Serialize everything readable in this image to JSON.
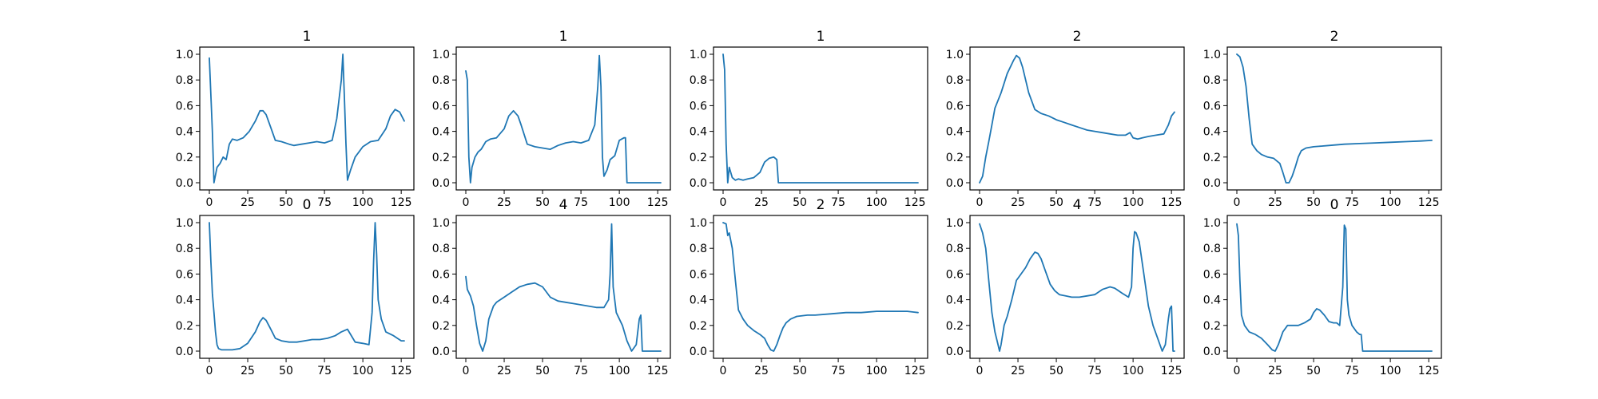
{
  "chart_data": [
    {
      "type": "line",
      "title": "1",
      "xlim": [
        0,
        127
      ],
      "ylim": [
        0,
        1
      ],
      "xticks": [
        "0",
        "25",
        "50",
        "75",
        "100",
        "125"
      ],
      "yticks": [
        "0.0",
        "0.2",
        "0.4",
        "0.6",
        "0.8",
        "1.0"
      ],
      "color": "#1f77b4",
      "x": [
        0,
        2,
        3,
        5,
        7,
        9,
        11,
        13,
        15,
        18,
        22,
        26,
        30,
        33,
        35,
        37,
        40,
        43,
        47,
        52,
        55,
        60,
        65,
        70,
        75,
        80,
        83,
        86,
        87,
        88,
        89,
        90,
        92,
        95,
        100,
        105,
        110,
        115,
        118,
        121,
        124,
        127
      ],
      "y": [
        0.97,
        0.4,
        0.0,
        0.12,
        0.15,
        0.2,
        0.18,
        0.3,
        0.34,
        0.33,
        0.35,
        0.4,
        0.48,
        0.56,
        0.56,
        0.53,
        0.43,
        0.33,
        0.32,
        0.3,
        0.29,
        0.3,
        0.31,
        0.32,
        0.31,
        0.33,
        0.5,
        0.8,
        1.0,
        0.65,
        0.3,
        0.02,
        0.1,
        0.2,
        0.28,
        0.32,
        0.33,
        0.42,
        0.52,
        0.57,
        0.55,
        0.48
      ]
    },
    {
      "type": "line",
      "title": "1",
      "xlim": [
        0,
        127
      ],
      "ylim": [
        0,
        1
      ],
      "xticks": [
        "0",
        "25",
        "50",
        "75",
        "100",
        "125"
      ],
      "yticks": [
        "0.0",
        "0.2",
        "0.4",
        "0.6",
        "0.8",
        "1.0"
      ],
      "color": "#1f77b4",
      "x": [
        0,
        1,
        2,
        3,
        4,
        6,
        8,
        10,
        13,
        16,
        20,
        25,
        28,
        31,
        34,
        36,
        40,
        45,
        50,
        55,
        60,
        65,
        70,
        75,
        80,
        84,
        86,
        87,
        88,
        89,
        90,
        92,
        94,
        97,
        100,
        103,
        104,
        105,
        106,
        110,
        120,
        127
      ],
      "y": [
        0.87,
        0.8,
        0.2,
        0.0,
        0.12,
        0.2,
        0.24,
        0.26,
        0.32,
        0.34,
        0.35,
        0.42,
        0.52,
        0.56,
        0.52,
        0.45,
        0.3,
        0.28,
        0.27,
        0.26,
        0.29,
        0.31,
        0.32,
        0.31,
        0.33,
        0.45,
        0.75,
        0.99,
        0.75,
        0.2,
        0.05,
        0.1,
        0.18,
        0.21,
        0.33,
        0.35,
        0.35,
        0.0,
        0.0,
        0.0,
        0.0,
        0.0
      ]
    },
    {
      "type": "line",
      "title": "1",
      "xlim": [
        0,
        127
      ],
      "ylim": [
        0,
        1
      ],
      "xticks": [
        "0",
        "25",
        "50",
        "75",
        "100",
        "125"
      ],
      "yticks": [
        "0.0",
        "0.2",
        "0.4",
        "0.6",
        "0.8",
        "1.0"
      ],
      "color": "#1f77b4",
      "x": [
        0,
        1,
        2,
        3,
        4,
        6,
        8,
        10,
        13,
        16,
        20,
        24,
        27,
        30,
        33,
        35,
        36,
        37,
        50,
        75,
        100,
        127
      ],
      "y": [
        1.0,
        0.88,
        0.3,
        0.0,
        0.12,
        0.04,
        0.02,
        0.03,
        0.02,
        0.03,
        0.04,
        0.08,
        0.16,
        0.19,
        0.2,
        0.18,
        0.0,
        0.0,
        0.0,
        0.0,
        0.0,
        0.0
      ]
    },
    {
      "type": "line",
      "title": "2",
      "xlim": [
        0,
        127
      ],
      "ylim": [
        0,
        1
      ],
      "xticks": [
        "0",
        "25",
        "50",
        "75",
        "100",
        "125"
      ],
      "yticks": [
        "0.0",
        "0.2",
        "0.4",
        "0.6",
        "0.8",
        "1.0"
      ],
      "color": "#1f77b4",
      "x": [
        0,
        2,
        4,
        6,
        8,
        10,
        14,
        18,
        22,
        24,
        26,
        28,
        32,
        36,
        40,
        45,
        50,
        55,
        60,
        65,
        70,
        75,
        80,
        85,
        90,
        95,
        98,
        100,
        103,
        106,
        110,
        115,
        120,
        123,
        125,
        127
      ],
      "y": [
        0.0,
        0.05,
        0.2,
        0.32,
        0.45,
        0.58,
        0.7,
        0.85,
        0.95,
        0.99,
        0.97,
        0.9,
        0.7,
        0.57,
        0.54,
        0.52,
        0.49,
        0.47,
        0.45,
        0.43,
        0.41,
        0.4,
        0.39,
        0.38,
        0.37,
        0.37,
        0.39,
        0.35,
        0.34,
        0.35,
        0.36,
        0.37,
        0.38,
        0.45,
        0.52,
        0.55
      ]
    },
    {
      "type": "line",
      "title": "2",
      "xlim": [
        0,
        127
      ],
      "ylim": [
        0,
        1
      ],
      "xticks": [
        "0",
        "25",
        "50",
        "75",
        "100",
        "125"
      ],
      "yticks": [
        "0.0",
        "0.2",
        "0.4",
        "0.6",
        "0.8",
        "1.0"
      ],
      "color": "#1f77b4",
      "x": [
        0,
        2,
        4,
        6,
        8,
        10,
        13,
        16,
        20,
        24,
        28,
        30,
        32,
        34,
        36,
        38,
        40,
        42,
        45,
        50,
        55,
        60,
        70,
        80,
        90,
        100,
        110,
        120,
        127
      ],
      "y": [
        1.0,
        0.98,
        0.9,
        0.75,
        0.5,
        0.3,
        0.25,
        0.22,
        0.2,
        0.19,
        0.15,
        0.08,
        0.0,
        0.0,
        0.05,
        0.12,
        0.2,
        0.25,
        0.27,
        0.28,
        0.285,
        0.29,
        0.3,
        0.305,
        0.31,
        0.315,
        0.32,
        0.325,
        0.33
      ]
    },
    {
      "type": "line",
      "title": "0",
      "xlim": [
        0,
        127
      ],
      "ylim": [
        0,
        1
      ],
      "xticks": [
        "0",
        "25",
        "50",
        "75",
        "100",
        "125"
      ],
      "yticks": [
        "0.0",
        "0.2",
        "0.4",
        "0.6",
        "0.8",
        "1.0"
      ],
      "color": "#1f77b4",
      "x": [
        0,
        1,
        2,
        3,
        4,
        5,
        6,
        8,
        10,
        15,
        20,
        25,
        30,
        33,
        35,
        37,
        40,
        43,
        47,
        52,
        57,
        62,
        67,
        72,
        77,
        82,
        86,
        90,
        92,
        95,
        100,
        104,
        106,
        107,
        108,
        109,
        110,
        112,
        115,
        120,
        125,
        127
      ],
      "y": [
        1.0,
        0.7,
        0.45,
        0.3,
        0.15,
        0.05,
        0.02,
        0.01,
        0.01,
        0.01,
        0.02,
        0.06,
        0.15,
        0.23,
        0.26,
        0.24,
        0.17,
        0.1,
        0.08,
        0.07,
        0.07,
        0.08,
        0.09,
        0.09,
        0.1,
        0.12,
        0.15,
        0.17,
        0.13,
        0.07,
        0.06,
        0.05,
        0.3,
        0.7,
        1.0,
        0.75,
        0.4,
        0.25,
        0.15,
        0.12,
        0.08,
        0.08
      ]
    },
    {
      "type": "line",
      "title": "4",
      "xlim": [
        0,
        127
      ],
      "ylim": [
        0,
        1
      ],
      "xticks": [
        "0",
        "25",
        "50",
        "75",
        "100",
        "125"
      ],
      "yticks": [
        "0.0",
        "0.2",
        "0.4",
        "0.6",
        "0.8",
        "1.0"
      ],
      "color": "#1f77b4",
      "x": [
        0,
        1,
        3,
        5,
        7,
        9,
        11,
        13,
        15,
        18,
        20,
        25,
        30,
        35,
        40,
        45,
        50,
        55,
        60,
        65,
        70,
        75,
        80,
        85,
        90,
        93,
        94,
        95,
        96,
        98,
        102,
        105,
        108,
        111,
        113,
        114,
        115,
        120,
        127
      ],
      "y": [
        0.58,
        0.48,
        0.43,
        0.35,
        0.2,
        0.06,
        0.0,
        0.08,
        0.25,
        0.35,
        0.38,
        0.42,
        0.46,
        0.5,
        0.52,
        0.53,
        0.5,
        0.42,
        0.39,
        0.38,
        0.37,
        0.36,
        0.35,
        0.34,
        0.34,
        0.4,
        0.6,
        0.99,
        0.5,
        0.3,
        0.2,
        0.08,
        0.0,
        0.05,
        0.25,
        0.28,
        0.0,
        0.0,
        0.0
      ]
    },
    {
      "type": "line",
      "title": "2",
      "xlim": [
        0,
        127
      ],
      "ylim": [
        0,
        1
      ],
      "xticks": [
        "0",
        "25",
        "50",
        "75",
        "100",
        "125"
      ],
      "yticks": [
        "0.0",
        "0.2",
        "0.4",
        "0.6",
        "0.8",
        "1.0"
      ],
      "color": "#1f77b4",
      "x": [
        0,
        2,
        3,
        4,
        6,
        8,
        10,
        13,
        16,
        20,
        24,
        27,
        29,
        31,
        33,
        35,
        37,
        39,
        41,
        44,
        48,
        55,
        60,
        70,
        80,
        90,
        100,
        110,
        120,
        127
      ],
      "y": [
        1.0,
        0.99,
        0.9,
        0.92,
        0.8,
        0.55,
        0.32,
        0.25,
        0.2,
        0.16,
        0.13,
        0.1,
        0.05,
        0.01,
        0.0,
        0.05,
        0.12,
        0.18,
        0.22,
        0.25,
        0.27,
        0.28,
        0.28,
        0.29,
        0.3,
        0.3,
        0.31,
        0.31,
        0.31,
        0.3
      ]
    },
    {
      "type": "line",
      "title": "4",
      "xlim": [
        0,
        127
      ],
      "ylim": [
        0,
        1
      ],
      "xticks": [
        "0",
        "25",
        "50",
        "75",
        "100",
        "125"
      ],
      "yticks": [
        "0.0",
        "0.2",
        "0.4",
        "0.6",
        "0.8",
        "1.0"
      ],
      "color": "#1f77b4",
      "x": [
        0,
        2,
        4,
        6,
        8,
        10,
        12,
        13,
        14,
        16,
        18,
        21,
        24,
        27,
        30,
        33,
        36,
        38,
        40,
        43,
        46,
        49,
        52,
        56,
        60,
        65,
        70,
        75,
        80,
        85,
        88,
        93,
        97,
        99,
        100,
        101,
        102,
        104,
        107,
        110,
        113,
        116,
        119,
        121,
        123,
        124,
        125,
        126,
        127
      ],
      "y": [
        0.99,
        0.92,
        0.8,
        0.55,
        0.3,
        0.15,
        0.05,
        0.0,
        0.05,
        0.2,
        0.27,
        0.4,
        0.55,
        0.6,
        0.65,
        0.72,
        0.77,
        0.76,
        0.72,
        0.62,
        0.52,
        0.47,
        0.44,
        0.43,
        0.42,
        0.42,
        0.43,
        0.44,
        0.48,
        0.5,
        0.49,
        0.45,
        0.42,
        0.5,
        0.8,
        0.93,
        0.92,
        0.85,
        0.6,
        0.35,
        0.2,
        0.1,
        0.0,
        0.05,
        0.25,
        0.33,
        0.35,
        0.0,
        0.0
      ]
    },
    {
      "type": "line",
      "title": "0",
      "xlim": [
        0,
        127
      ],
      "ylim": [
        0,
        1
      ],
      "xticks": [
        "0",
        "25",
        "50",
        "75",
        "100",
        "125"
      ],
      "yticks": [
        "0.0",
        "0.2",
        "0.4",
        "0.6",
        "0.8",
        "1.0"
      ],
      "color": "#1f77b4",
      "x": [
        0,
        1,
        2,
        3,
        5,
        8,
        12,
        16,
        20,
        23,
        25,
        27,
        30,
        33,
        36,
        40,
        44,
        48,
        50,
        52,
        54,
        57,
        60,
        63,
        65,
        67,
        69,
        70,
        71,
        72,
        73,
        75,
        78,
        80,
        81,
        82,
        90,
        100,
        110,
        120,
        127
      ],
      "y": [
        0.99,
        0.9,
        0.55,
        0.28,
        0.2,
        0.15,
        0.13,
        0.1,
        0.05,
        0.01,
        0.0,
        0.05,
        0.15,
        0.2,
        0.2,
        0.2,
        0.22,
        0.25,
        0.3,
        0.33,
        0.32,
        0.28,
        0.23,
        0.22,
        0.22,
        0.2,
        0.5,
        0.98,
        0.95,
        0.4,
        0.28,
        0.2,
        0.15,
        0.13,
        0.13,
        0.0,
        0.0,
        0.0,
        0.0,
        0.0,
        0.0
      ]
    }
  ]
}
